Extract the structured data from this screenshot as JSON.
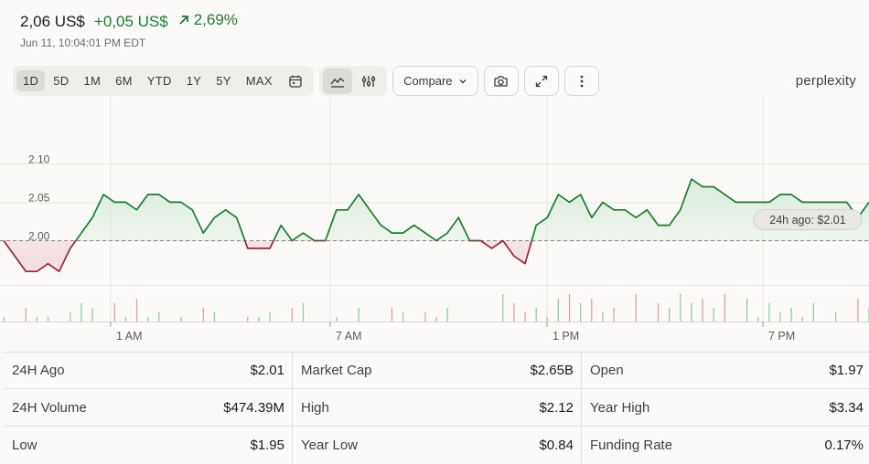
{
  "header": {
    "price": "2,06 US$",
    "change": "+0,05 US$",
    "percent": "2,69%",
    "timestamp": "Jun 11, 10:04:01 PM EDT"
  },
  "toolbar": {
    "ranges": [
      "1D",
      "5D",
      "1M",
      "6M",
      "YTD",
      "1Y",
      "5Y",
      "MAX"
    ],
    "active_range": "1D",
    "compare_label": "Compare",
    "icons": [
      "calendar-icon",
      "line-chart-icon",
      "sliders-icon",
      "chevron-down-icon",
      "camera-icon",
      "expand-icon",
      "more-vertical-icon"
    ]
  },
  "brand": "perplexity",
  "chart_data": {
    "type": "line",
    "x_ticks": [
      "1 AM",
      "7 AM",
      "1 PM",
      "7 PM"
    ],
    "y_ticks": [
      2.1,
      2.05,
      2.0
    ],
    "y_tick_labels": [
      "2.10",
      "2.05",
      "2.00"
    ],
    "baseline": 2.0,
    "baseline_label": "24h ago: $2.01",
    "colors": {
      "up": "#1e7a34",
      "down": "#9b2335",
      "up_fill": "#d6ebd9",
      "down_fill": "#f1d9dc",
      "grid": "#e7e5e1"
    },
    "series": [
      {
        "x": [
          0.0,
          0.3,
          0.6,
          0.9,
          1.2,
          1.5,
          1.8,
          2.1,
          2.4,
          2.7,
          3.0,
          3.3,
          3.6,
          3.9,
          4.2,
          4.5,
          4.8,
          5.1,
          5.4,
          5.7,
          6.0,
          6.3,
          6.6,
          6.9,
          7.2,
          7.5,
          7.8,
          8.1,
          8.4,
          8.7,
          9.0,
          9.3,
          9.6,
          9.9,
          10.2,
          10.5,
          10.8,
          11.1,
          11.4,
          11.7,
          12.0,
          12.3,
          12.6,
          12.9,
          13.2,
          13.5,
          13.8,
          14.1,
          14.4,
          14.7,
          15.0,
          15.3,
          15.6,
          15.9,
          16.2,
          16.5,
          16.8,
          17.1,
          17.4,
          17.7,
          18.0,
          18.3,
          18.6,
          18.9,
          19.2,
          19.5,
          19.8,
          20.1,
          20.4,
          20.7,
          21.0,
          21.3,
          21.6,
          21.9,
          22.2,
          22.5,
          22.8,
          23.1,
          23.4
        ],
        "y": [
          2.0,
          1.98,
          1.96,
          1.96,
          1.97,
          1.96,
          1.99,
          2.01,
          2.03,
          2.06,
          2.05,
          2.05,
          2.04,
          2.06,
          2.06,
          2.05,
          2.05,
          2.04,
          2.01,
          2.03,
          2.04,
          2.03,
          1.99,
          1.99,
          1.99,
          2.02,
          2.0,
          2.01,
          2.0,
          2.0,
          2.04,
          2.04,
          2.06,
          2.04,
          2.02,
          2.01,
          2.01,
          2.02,
          2.01,
          2.0,
          2.01,
          2.03,
          2.0,
          2.0,
          1.99,
          2.0,
          1.98,
          1.97,
          2.02,
          2.03,
          2.06,
          2.05,
          2.06,
          2.03,
          2.05,
          2.04,
          2.04,
          2.03,
          2.04,
          2.02,
          2.02,
          2.04,
          2.08,
          2.07,
          2.07,
          2.06,
          2.05,
          2.05,
          2.05,
          2.05,
          2.06,
          2.06,
          2.05,
          2.05,
          2.05,
          2.05,
          2.05,
          2.03,
          2.05
        ]
      }
    ],
    "volume": [
      1,
      0,
      3,
      1,
      1,
      0,
      2,
      4,
      3,
      0,
      4,
      1,
      5,
      1,
      2,
      0,
      1,
      0,
      3,
      2,
      0,
      0,
      1,
      1,
      2,
      0,
      3,
      4,
      0,
      0,
      1,
      0,
      3,
      0,
      0,
      3,
      2,
      0,
      2,
      1,
      3,
      0,
      0,
      0,
      0,
      6,
      4,
      2,
      3,
      1,
      5,
      6,
      4,
      5,
      2,
      3,
      0,
      6,
      0,
      4,
      3,
      6,
      4,
      5,
      3,
      6,
      0,
      5,
      1,
      4,
      2,
      3,
      1,
      4,
      0,
      2,
      0,
      5,
      3
    ]
  },
  "stats": [
    {
      "label": "24H Ago",
      "value": "$2.01"
    },
    {
      "label": "Market Cap",
      "value": "$2.65B"
    },
    {
      "label": "Open",
      "value": "$1.97"
    },
    {
      "label": "24H Volume",
      "value": "$474.39M"
    },
    {
      "label": "High",
      "value": "$2.12"
    },
    {
      "label": "Year High",
      "value": "$3.34"
    },
    {
      "label": "Low",
      "value": "$1.95"
    },
    {
      "label": "Year Low",
      "value": "$0.84"
    },
    {
      "label": "Funding Rate",
      "value": "0.17%"
    }
  ]
}
